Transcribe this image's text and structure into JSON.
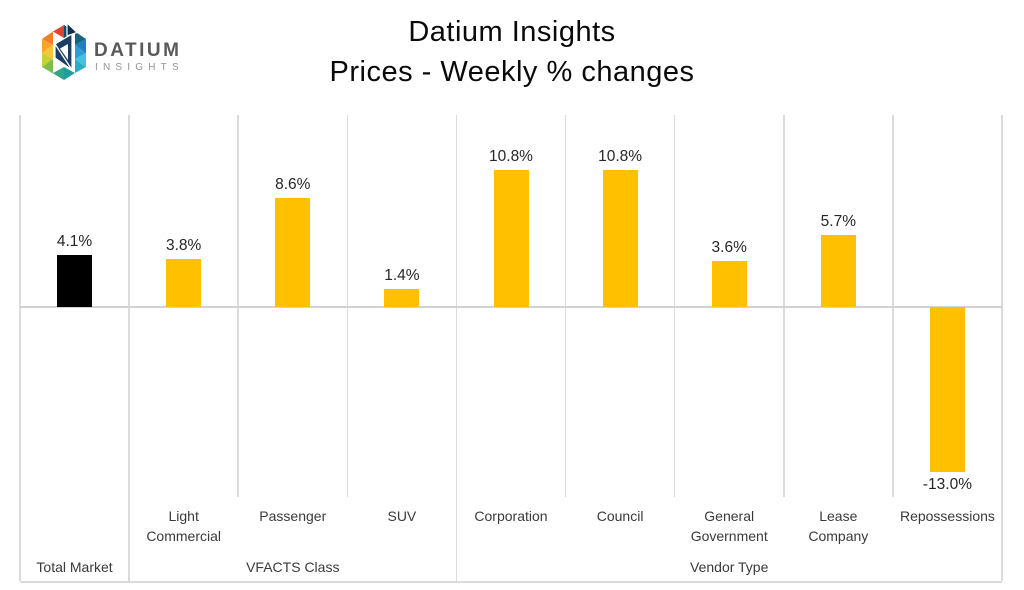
{
  "header": {
    "logo": {
      "brand": "DATIUM",
      "sub": "INSIGHTS"
    },
    "title_line1": "Datium Insights",
    "title_line2": "Prices - Weekly % changes"
  },
  "chart_data": {
    "type": "bar",
    "title": "Datium Insights Prices - Weekly % changes",
    "categories": [
      "Total Market",
      "Light Commercial",
      "Passenger",
      "SUV",
      "Corporation",
      "Council",
      "General Government",
      "Lease Company",
      "Repossessions"
    ],
    "values": [
      4.1,
      3.8,
      8.6,
      1.4,
      10.8,
      10.8,
      3.6,
      5.7,
      -13.0
    ],
    "value_labels": [
      "4.1%",
      "3.8%",
      "8.6%",
      "1.4%",
      "10.8%",
      "10.8%",
      "3.6%",
      "5.7%",
      "-13.0%"
    ],
    "axis_tier1_labels": [
      "",
      "Light\nCommercial",
      "Passenger",
      "SUV",
      "Corporation",
      "Council",
      "General\nGovernment",
      "Lease\nCompany",
      "Repossessions"
    ],
    "axis_tier2_groups": [
      {
        "label": "Total Market",
        "start": 0,
        "end": 0
      },
      {
        "label": "VFACTS Class",
        "start": 1,
        "end": 3
      },
      {
        "label": "Vendor Type",
        "start": 4,
        "end": 8
      }
    ],
    "bar_colors": [
      "#000000",
      "#FFC000",
      "#FFC000",
      "#FFC000",
      "#FFC000",
      "#FFC000",
      "#FFC000",
      "#FFC000",
      "#FFC000"
    ],
    "ylim": [
      -15,
      15
    ],
    "ylabel": "",
    "xlabel": "",
    "legend": null,
    "grid": "zero line and vertical category separators only"
  },
  "colors": {
    "accent_gold": "#FFC000",
    "total_market_bar": "#000000",
    "gridline": "#DBDBDB",
    "zero_line": "#D2D2D2",
    "value_label_text": "#262626",
    "axis_label_text": "#3a3a3a",
    "title_text": "#0a0a0a",
    "brand_dark": "#58595B",
    "brand_light": "#939598"
  }
}
